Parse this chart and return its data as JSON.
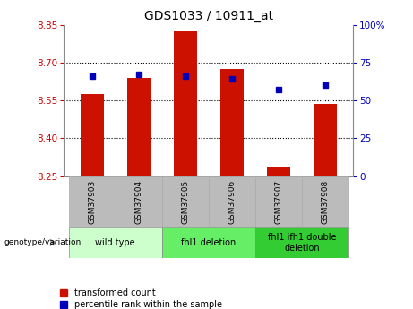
{
  "title": "GDS1033 / 10911_at",
  "samples": [
    "GSM37903",
    "GSM37904",
    "GSM37905",
    "GSM37906",
    "GSM37907",
    "GSM37908"
  ],
  "bar_values": [
    8.575,
    8.64,
    8.825,
    8.675,
    8.285,
    8.535
  ],
  "dot_values": [
    66,
    67,
    66,
    64,
    57,
    60
  ],
  "ymin": 8.25,
  "ymax": 8.85,
  "y2min": 0,
  "y2max": 100,
  "yticks": [
    8.25,
    8.4,
    8.55,
    8.7,
    8.85
  ],
  "y2ticks": [
    0,
    25,
    50,
    75,
    100
  ],
  "bar_color": "#cc1100",
  "dot_color": "#0000bb",
  "bar_bottom": 8.25,
  "group_data": [
    {
      "label": "wild type",
      "start": 0,
      "end": 1,
      "color": "#ccffcc"
    },
    {
      "label": "fhl1 deletion",
      "start": 2,
      "end": 3,
      "color": "#66ee66"
    },
    {
      "label": "fhl1 ifh1 double\ndeletion",
      "start": 4,
      "end": 5,
      "color": "#33cc33"
    }
  ],
  "xlabel_color": "#cc0000",
  "ylabel_right_color": "#0000bb",
  "bg_color": "#ffffff",
  "tick_label_area_color": "#bbbbbb",
  "legend_red_label": "transformed count",
  "legend_blue_label": "percentile rank within the sample",
  "genotype_label": "genotype/variation"
}
